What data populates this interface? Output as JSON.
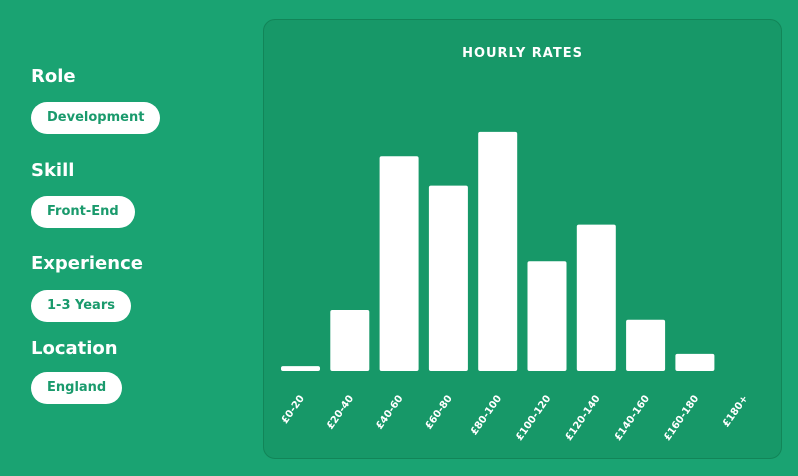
{
  "filters": [
    {
      "label": "Role",
      "value": "Development"
    },
    {
      "label": "Skill",
      "value": "Front-End"
    },
    {
      "label": "Experience",
      "value": "1-3 Years"
    },
    {
      "label": "Location",
      "value": "England"
    }
  ],
  "colors": {
    "background": "#1aa372",
    "panel": "#179868",
    "bar": "#ffffff",
    "pill_text": "#1a9a6c"
  },
  "chart_data": {
    "type": "bar",
    "title": "HOURLY RATES",
    "xlabel": "",
    "ylabel": "",
    "grid": false,
    "categories": [
      "£0-20",
      "£20-40",
      "£40-60",
      "£60-80",
      "£80-100",
      "£100-120",
      "£120-140",
      "£140-160",
      "£160-180",
      "£180+"
    ],
    "values": [
      2,
      25,
      88,
      76,
      98,
      45,
      60,
      21,
      7,
      0
    ],
    "ylim": [
      0,
      100
    ]
  }
}
